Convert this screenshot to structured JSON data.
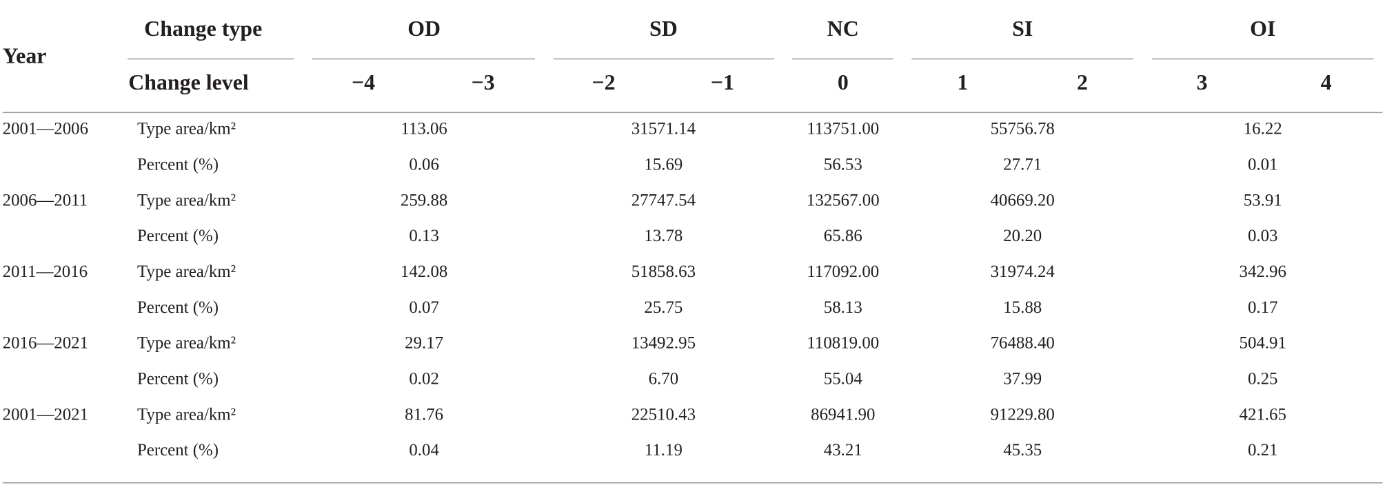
{
  "table": {
    "header": {
      "year": "Year",
      "change_type": "Change type",
      "change_level": "Change level",
      "types": [
        "OD",
        "SD",
        "NC",
        "SI",
        "OI"
      ],
      "levels": [
        "−4",
        "−3",
        "−2",
        "−1",
        "0",
        "1",
        "2",
        "3",
        "4"
      ]
    },
    "rows": [
      {
        "year": "2001—2006",
        "area": {
          "label": "Type area/km²",
          "values": [
            "113.06",
            "31571.14",
            "113751.00",
            "55756.78",
            "16.22"
          ]
        },
        "percent": {
          "label": "Percent (%)",
          "values": [
            "0.06",
            "15.69",
            "56.53",
            "27.71",
            "0.01"
          ]
        }
      },
      {
        "year": "2006—2011",
        "area": {
          "label": "Type area/km²",
          "values": [
            "259.88",
            "27747.54",
            "132567.00",
            "40669.20",
            "53.91"
          ]
        },
        "percent": {
          "label": "Percent (%)",
          "values": [
            "0.13",
            "13.78",
            "65.86",
            "20.20",
            "0.03"
          ]
        }
      },
      {
        "year": "2011—2016",
        "area": {
          "label": "Type area/km²",
          "values": [
            "142.08",
            "51858.63",
            "117092.00",
            "31974.24",
            "342.96"
          ]
        },
        "percent": {
          "label": "Percent (%)",
          "values": [
            "0.07",
            "25.75",
            "58.13",
            "15.88",
            "0.17"
          ]
        }
      },
      {
        "year": "2016—2021",
        "area": {
          "label": "Type area/km²",
          "values": [
            "29.17",
            "13492.95",
            "110819.00",
            "76488.40",
            "504.91"
          ]
        },
        "percent": {
          "label": "Percent (%)",
          "values": [
            "0.02",
            "6.70",
            "55.04",
            "37.99",
            "0.25"
          ]
        }
      },
      {
        "year": "2001—2021",
        "area": {
          "label": "Type area/km²",
          "values": [
            "81.76",
            "22510.43",
            "86941.90",
            "91229.80",
            "421.65"
          ]
        },
        "percent": {
          "label": "Percent (%)",
          "values": [
            "0.04",
            "11.19",
            "43.21",
            "45.35",
            "0.21"
          ]
        }
      }
    ]
  }
}
